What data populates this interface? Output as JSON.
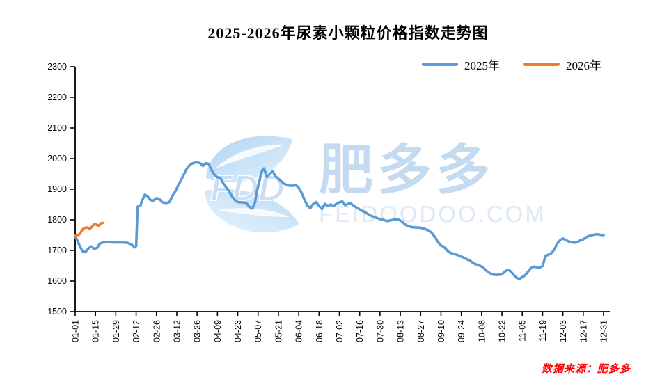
{
  "title": "2025-2026年尿素小颗粒价格指数走势图",
  "source_note": "数据来源：肥多多",
  "watermark": {
    "logo_text": "FDD",
    "brand": "肥多多",
    "domain": "FEIDOODOO.COM"
  },
  "chart_data": {
    "type": "line",
    "title": "2025-2026年尿素小颗粒价格指数走势图",
    "xlabel": "",
    "ylabel": "",
    "ylim": [
      1500,
      2300
    ],
    "y_step": 100,
    "grid": false,
    "legend_position": "top-right",
    "axis_color": "#000000",
    "x_tick_labels": [
      "01-01",
      "01-15",
      "01-29",
      "02-12",
      "02-26",
      "03-12",
      "03-26",
      "04-09",
      "04-23",
      "05-07",
      "05-21",
      "06-04",
      "06-18",
      "07-02",
      "07-16",
      "07-30",
      "08-13",
      "08-27",
      "09-10",
      "09-24",
      "10-08",
      "10-22",
      "11-05",
      "11-19",
      "12-03",
      "12-17",
      "12-31"
    ],
    "series": [
      {
        "name": "2025年",
        "color": "#5B9BD5",
        "points": [
          [
            "01-01",
            1741
          ],
          [
            "01-02",
            1738
          ],
          [
            "01-04",
            1716
          ],
          [
            "01-06",
            1698
          ],
          [
            "01-08",
            1694
          ],
          [
            "01-10",
            1706
          ],
          [
            "01-12",
            1713
          ],
          [
            "01-14",
            1705
          ],
          [
            "01-16",
            1708
          ],
          [
            "01-18",
            1722
          ],
          [
            "01-20",
            1726
          ],
          [
            "01-24",
            1727
          ],
          [
            "01-28",
            1726
          ],
          [
            "02-02",
            1726
          ],
          [
            "02-06",
            1725
          ],
          [
            "02-09",
            1719
          ],
          [
            "02-11",
            1710
          ],
          [
            "02-12",
            1714
          ],
          [
            "02-13",
            1843
          ],
          [
            "02-15",
            1846
          ],
          [
            "02-16",
            1862
          ],
          [
            "02-18",
            1882
          ],
          [
            "02-20",
            1876
          ],
          [
            "02-22",
            1864
          ],
          [
            "02-24",
            1863
          ],
          [
            "02-26",
            1871
          ],
          [
            "02-28",
            1868
          ],
          [
            "03-02",
            1857
          ],
          [
            "03-05",
            1855
          ],
          [
            "03-07",
            1858
          ],
          [
            "03-09",
            1878
          ],
          [
            "03-11",
            1893
          ],
          [
            "03-13",
            1912
          ],
          [
            "03-15",
            1930
          ],
          [
            "03-17",
            1950
          ],
          [
            "03-19",
            1968
          ],
          [
            "03-21",
            1979
          ],
          [
            "03-23",
            1985
          ],
          [
            "03-26",
            1988
          ],
          [
            "03-28",
            1985
          ],
          [
            "03-30",
            1976
          ],
          [
            "04-01",
            1985
          ],
          [
            "04-03",
            1983
          ],
          [
            "04-05",
            1962
          ],
          [
            "04-07",
            1947
          ],
          [
            "04-09",
            1939
          ],
          [
            "04-11",
            1937
          ],
          [
            "04-13",
            1919
          ],
          [
            "04-15",
            1906
          ],
          [
            "04-17",
            1894
          ],
          [
            "04-19",
            1877
          ],
          [
            "04-21",
            1864
          ],
          [
            "04-23",
            1858
          ],
          [
            "04-26",
            1857
          ],
          [
            "04-29",
            1855
          ],
          [
            "05-01",
            1842
          ],
          [
            "05-03",
            1837
          ],
          [
            "05-05",
            1858
          ],
          [
            "05-06",
            1890
          ],
          [
            "05-08",
            1927
          ],
          [
            "05-09",
            1950
          ],
          [
            "05-10",
            1963
          ],
          [
            "05-11",
            1968
          ],
          [
            "05-12",
            1955
          ],
          [
            "05-13",
            1940
          ],
          [
            "05-15",
            1950
          ],
          [
            "05-17",
            1959
          ],
          [
            "05-19",
            1942
          ],
          [
            "05-21",
            1934
          ],
          [
            "05-23",
            1926
          ],
          [
            "05-25",
            1918
          ],
          [
            "05-27",
            1913
          ],
          [
            "05-30",
            1911
          ],
          [
            "06-02",
            1913
          ],
          [
            "06-04",
            1905
          ],
          [
            "06-06",
            1888
          ],
          [
            "06-08",
            1865
          ],
          [
            "06-10",
            1846
          ],
          [
            "06-12",
            1838
          ],
          [
            "06-14",
            1852
          ],
          [
            "06-16",
            1858
          ],
          [
            "06-18",
            1845
          ],
          [
            "06-20",
            1836
          ],
          [
            "06-22",
            1852
          ],
          [
            "06-24",
            1846
          ],
          [
            "06-26",
            1850
          ],
          [
            "06-28",
            1845
          ],
          [
            "06-30",
            1852
          ],
          [
            "07-02",
            1857
          ],
          [
            "07-04",
            1860
          ],
          [
            "07-06",
            1848
          ],
          [
            "07-08",
            1852
          ],
          [
            "07-10",
            1853
          ],
          [
            "07-12",
            1845
          ],
          [
            "07-14",
            1840
          ],
          [
            "07-17",
            1831
          ],
          [
            "07-20",
            1824
          ],
          [
            "07-23",
            1815
          ],
          [
            "07-26",
            1809
          ],
          [
            "07-29",
            1804
          ],
          [
            "08-01",
            1800
          ],
          [
            "08-04",
            1796
          ],
          [
            "08-07",
            1799
          ],
          [
            "08-10",
            1802
          ],
          [
            "08-12",
            1800
          ],
          [
            "08-14",
            1795
          ],
          [
            "08-16",
            1786
          ],
          [
            "08-18",
            1780
          ],
          [
            "08-21",
            1776
          ],
          [
            "08-24",
            1775
          ],
          [
            "08-27",
            1774
          ],
          [
            "08-30",
            1770
          ],
          [
            "09-02",
            1764
          ],
          [
            "09-04",
            1755
          ],
          [
            "09-06",
            1743
          ],
          [
            "09-08",
            1727
          ],
          [
            "09-10",
            1716
          ],
          [
            "09-12",
            1712
          ],
          [
            "09-14",
            1701
          ],
          [
            "09-16",
            1693
          ],
          [
            "09-18",
            1690
          ],
          [
            "09-20",
            1687
          ],
          [
            "09-22",
            1684
          ],
          [
            "09-24",
            1680
          ],
          [
            "09-26",
            1676
          ],
          [
            "09-28",
            1671
          ],
          [
            "09-30",
            1667
          ],
          [
            "10-02",
            1659
          ],
          [
            "10-05",
            1653
          ],
          [
            "10-08",
            1648
          ],
          [
            "10-10",
            1640
          ],
          [
            "10-12",
            1631
          ],
          [
            "10-14",
            1625
          ],
          [
            "10-16",
            1621
          ],
          [
            "10-19",
            1620
          ],
          [
            "10-22",
            1622
          ],
          [
            "10-24",
            1631
          ],
          [
            "10-26",
            1637
          ],
          [
            "10-28",
            1632
          ],
          [
            "10-30",
            1621
          ],
          [
            "11-01",
            1611
          ],
          [
            "11-03",
            1607
          ],
          [
            "11-05",
            1613
          ],
          [
            "11-07",
            1619
          ],
          [
            "11-09",
            1631
          ],
          [
            "11-11",
            1643
          ],
          [
            "11-13",
            1647
          ],
          [
            "11-15",
            1645
          ],
          [
            "11-17",
            1644
          ],
          [
            "11-19",
            1649
          ],
          [
            "11-21",
            1682
          ],
          [
            "11-23",
            1686
          ],
          [
            "11-25",
            1691
          ],
          [
            "11-27",
            1702
          ],
          [
            "11-29",
            1722
          ],
          [
            "12-01",
            1733
          ],
          [
            "12-03",
            1739
          ],
          [
            "12-05",
            1734
          ],
          [
            "12-07",
            1729
          ],
          [
            "12-09",
            1727
          ],
          [
            "12-11",
            1725
          ],
          [
            "12-13",
            1727
          ],
          [
            "12-15",
            1733
          ],
          [
            "12-17",
            1736
          ],
          [
            "12-19",
            1743
          ],
          [
            "12-21",
            1747
          ],
          [
            "12-23",
            1750
          ],
          [
            "12-25",
            1752
          ],
          [
            "12-27",
            1753
          ],
          [
            "12-29",
            1751
          ],
          [
            "12-31",
            1750
          ]
        ]
      },
      {
        "name": "2026年",
        "color": "#ED7D31",
        "points": [
          [
            "01-01",
            1748
          ],
          [
            "01-02",
            1752
          ],
          [
            "01-03",
            1750
          ],
          [
            "01-04",
            1753
          ],
          [
            "01-05",
            1760
          ],
          [
            "01-06",
            1768
          ],
          [
            "01-07",
            1772
          ],
          [
            "01-08",
            1774
          ],
          [
            "01-09",
            1775
          ],
          [
            "01-10",
            1773
          ],
          [
            "01-11",
            1771
          ],
          [
            "01-12",
            1774
          ],
          [
            "01-13",
            1780
          ],
          [
            "01-14",
            1785
          ],
          [
            "01-15",
            1786
          ],
          [
            "01-16",
            1783
          ],
          [
            "01-17",
            1781
          ],
          [
            "01-18",
            1784
          ],
          [
            "01-19",
            1789
          ],
          [
            "01-20",
            1790
          ]
        ]
      }
    ]
  }
}
